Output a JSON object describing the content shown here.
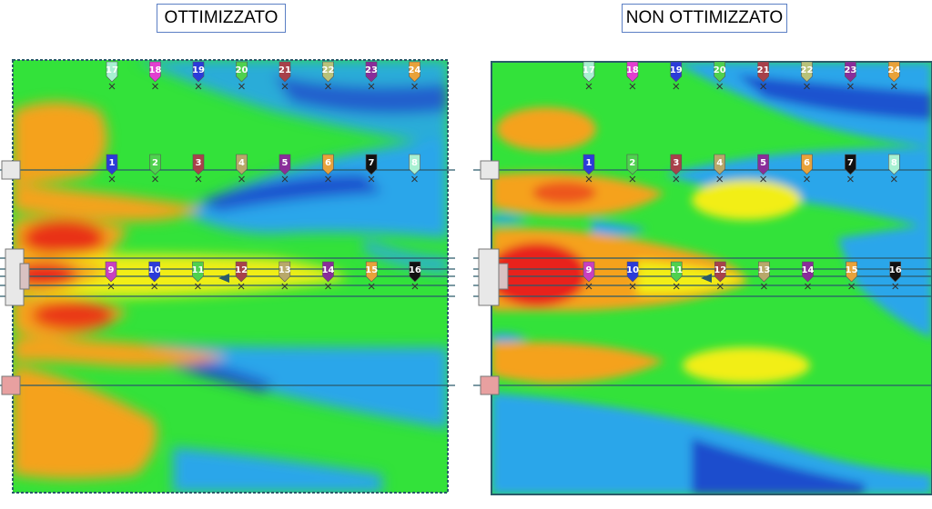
{
  "panels": [
    {
      "id": "left",
      "title": "OTTIMIZZATO",
      "rows": [
        {
          "markers": [
            {
              "label": "17",
              "color": "#a8f0d2"
            },
            {
              "label": "18",
              "color": "#e23fd0"
            },
            {
              "label": "19",
              "color": "#2b3bd9"
            },
            {
              "label": "20",
              "color": "#4fd14f"
            },
            {
              "label": "21",
              "color": "#a8414a"
            },
            {
              "label": "22",
              "color": "#b8c27a"
            },
            {
              "label": "23",
              "color": "#8a2d9a"
            },
            {
              "label": "24",
              "color": "#e8a23a"
            }
          ]
        },
        {
          "markers": [
            {
              "label": "1",
              "color": "#2b3bd9"
            },
            {
              "label": "2",
              "color": "#4fd14f"
            },
            {
              "label": "3",
              "color": "#a8414a"
            },
            {
              "label": "4",
              "color": "#b8a86a"
            },
            {
              "label": "5",
              "color": "#8a2d9a"
            },
            {
              "label": "6",
              "color": "#e8a23a"
            },
            {
              "label": "7",
              "color": "#111111"
            },
            {
              "label": "8",
              "color": "#a8f0d2"
            }
          ]
        },
        {
          "markers": [
            {
              "label": "9",
              "color": "#c93fc0"
            },
            {
              "label": "10",
              "color": "#2b3bd9"
            },
            {
              "label": "11",
              "color": "#4fd14f"
            },
            {
              "label": "12",
              "color": "#a8414a"
            },
            {
              "label": "13",
              "color": "#b8a86a"
            },
            {
              "label": "14",
              "color": "#8a2d9a"
            },
            {
              "label": "15",
              "color": "#e8a23a"
            },
            {
              "label": "16",
              "color": "#111111"
            }
          ]
        }
      ]
    },
    {
      "id": "right",
      "title": "NON OTTIMIZZATO",
      "rows": [
        {
          "markers": [
            {
              "label": "17",
              "color": "#a8f0d2"
            },
            {
              "label": "18",
              "color": "#e23fd0"
            },
            {
              "label": "19",
              "color": "#2b3bd9"
            },
            {
              "label": "20",
              "color": "#4fd14f"
            },
            {
              "label": "21",
              "color": "#a8414a"
            },
            {
              "label": "22",
              "color": "#b8c27a"
            },
            {
              "label": "23",
              "color": "#8a2d9a"
            },
            {
              "label": "24",
              "color": "#e8a23a"
            }
          ]
        },
        {
          "markers": [
            {
              "label": "1",
              "color": "#2b3bd9"
            },
            {
              "label": "2",
              "color": "#4fd14f"
            },
            {
              "label": "3",
              "color": "#a8414a"
            },
            {
              "label": "4",
              "color": "#b8a86a"
            },
            {
              "label": "5",
              "color": "#8a2d9a"
            },
            {
              "label": "6",
              "color": "#e8a23a"
            },
            {
              "label": "7",
              "color": "#111111"
            },
            {
              "label": "8",
              "color": "#a8f0d2"
            }
          ]
        },
        {
          "markers": [
            {
              "label": "9",
              "color": "#c93fc0"
            },
            {
              "label": "10",
              "color": "#2b3bd9"
            },
            {
              "label": "11",
              "color": "#4fd14f"
            },
            {
              "label": "12",
              "color": "#a8414a"
            },
            {
              "label": "13",
              "color": "#b8a86a"
            },
            {
              "label": "14",
              "color": "#8a2d9a"
            },
            {
              "label": "15",
              "color": "#e8a23a"
            },
            {
              "label": "16",
              "color": "#111111"
            }
          ]
        }
      ]
    }
  ],
  "colors": {
    "background_field": "#33e23a",
    "hot": "#e8241a",
    "warm": "#f5a21a",
    "yellow": "#f2ee16",
    "cool": "#2aa6ea",
    "cold": "#1c3ec8",
    "guide_line": "#2a5a6a",
    "frame": "#2a5a6a"
  }
}
